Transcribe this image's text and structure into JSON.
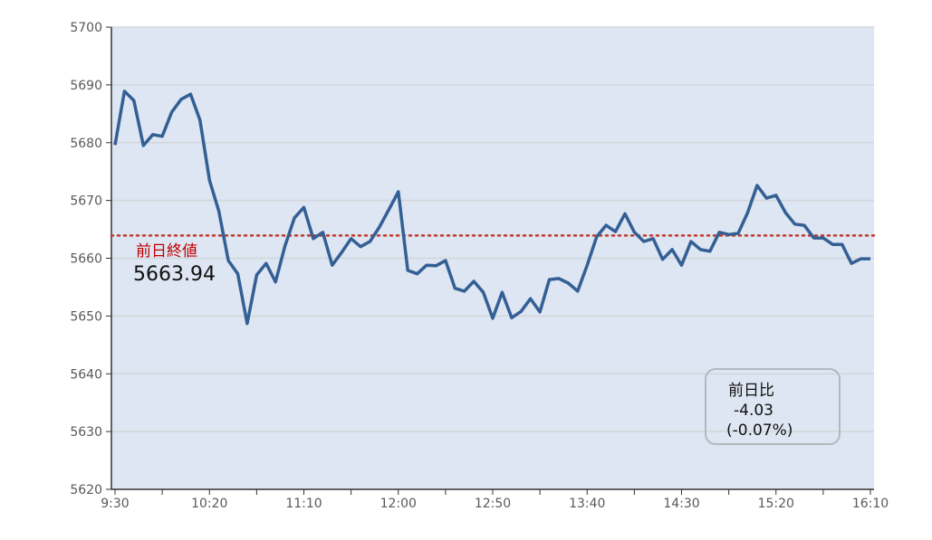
{
  "chart_data": {
    "type": "line",
    "title": "",
    "xlabel": "",
    "ylabel": "",
    "ylim": [
      5620,
      5700
    ],
    "yticks": [
      5620,
      5630,
      5640,
      5650,
      5660,
      5670,
      5680,
      5690,
      5700
    ],
    "xtick_labels": [
      "9:30",
      "10:20",
      "11:10",
      "12:00",
      "12:50",
      "13:40",
      "14:30",
      "15:20",
      "16:10"
    ],
    "x_start": "9:30",
    "x_end": "16:10",
    "x_interval_minutes": 5,
    "grid": true,
    "line_color": "#345f95",
    "reference_line_color": "#c0392b",
    "plot_background": "#dde6f2",
    "series": [
      {
        "values": [
          5679.6,
          5688.9,
          5687.3,
          5679.5,
          5681.4,
          5681.1,
          5685.3,
          5687.5,
          5688.4,
          5683.9,
          5673.5,
          5668.1,
          5659.6,
          5657.3,
          5648.7,
          5657.1,
          5659.1,
          5655.9,
          5662.1,
          5667.0,
          5668.8,
          5663.4,
          5664.5,
          5658.8,
          5661.0,
          5663.4,
          5662.0,
          5662.9,
          5665.4,
          5668.4,
          5671.5,
          5657.9,
          5657.3,
          5658.8,
          5658.7,
          5659.6,
          5654.8,
          5654.3,
          5656.0,
          5654.1,
          5649.6,
          5654.1,
          5649.7,
          5650.8,
          5653.0,
          5650.7,
          5656.3,
          5656.5,
          5655.7,
          5654.3,
          5658.8,
          5663.7,
          5665.7,
          5664.6,
          5667.7,
          5664.5,
          5662.9,
          5663.4,
          5659.8,
          5661.5,
          5658.8,
          5662.9,
          5661.5,
          5661.2,
          5664.5,
          5664.1,
          5664.3,
          5667.9,
          5672.6,
          5670.4,
          5670.9,
          5667.9,
          5665.9,
          5665.7,
          5663.5,
          5663.5,
          5662.4,
          5662.4,
          5659.1,
          5659.9,
          5659.91
        ]
      }
    ],
    "reference_line": {
      "value": 5663.94,
      "label": "前日終値",
      "value_text": "5663.94"
    },
    "change_box": {
      "label": "前日比",
      "change": "-4.03",
      "percent": "(-0.07%)"
    }
  }
}
